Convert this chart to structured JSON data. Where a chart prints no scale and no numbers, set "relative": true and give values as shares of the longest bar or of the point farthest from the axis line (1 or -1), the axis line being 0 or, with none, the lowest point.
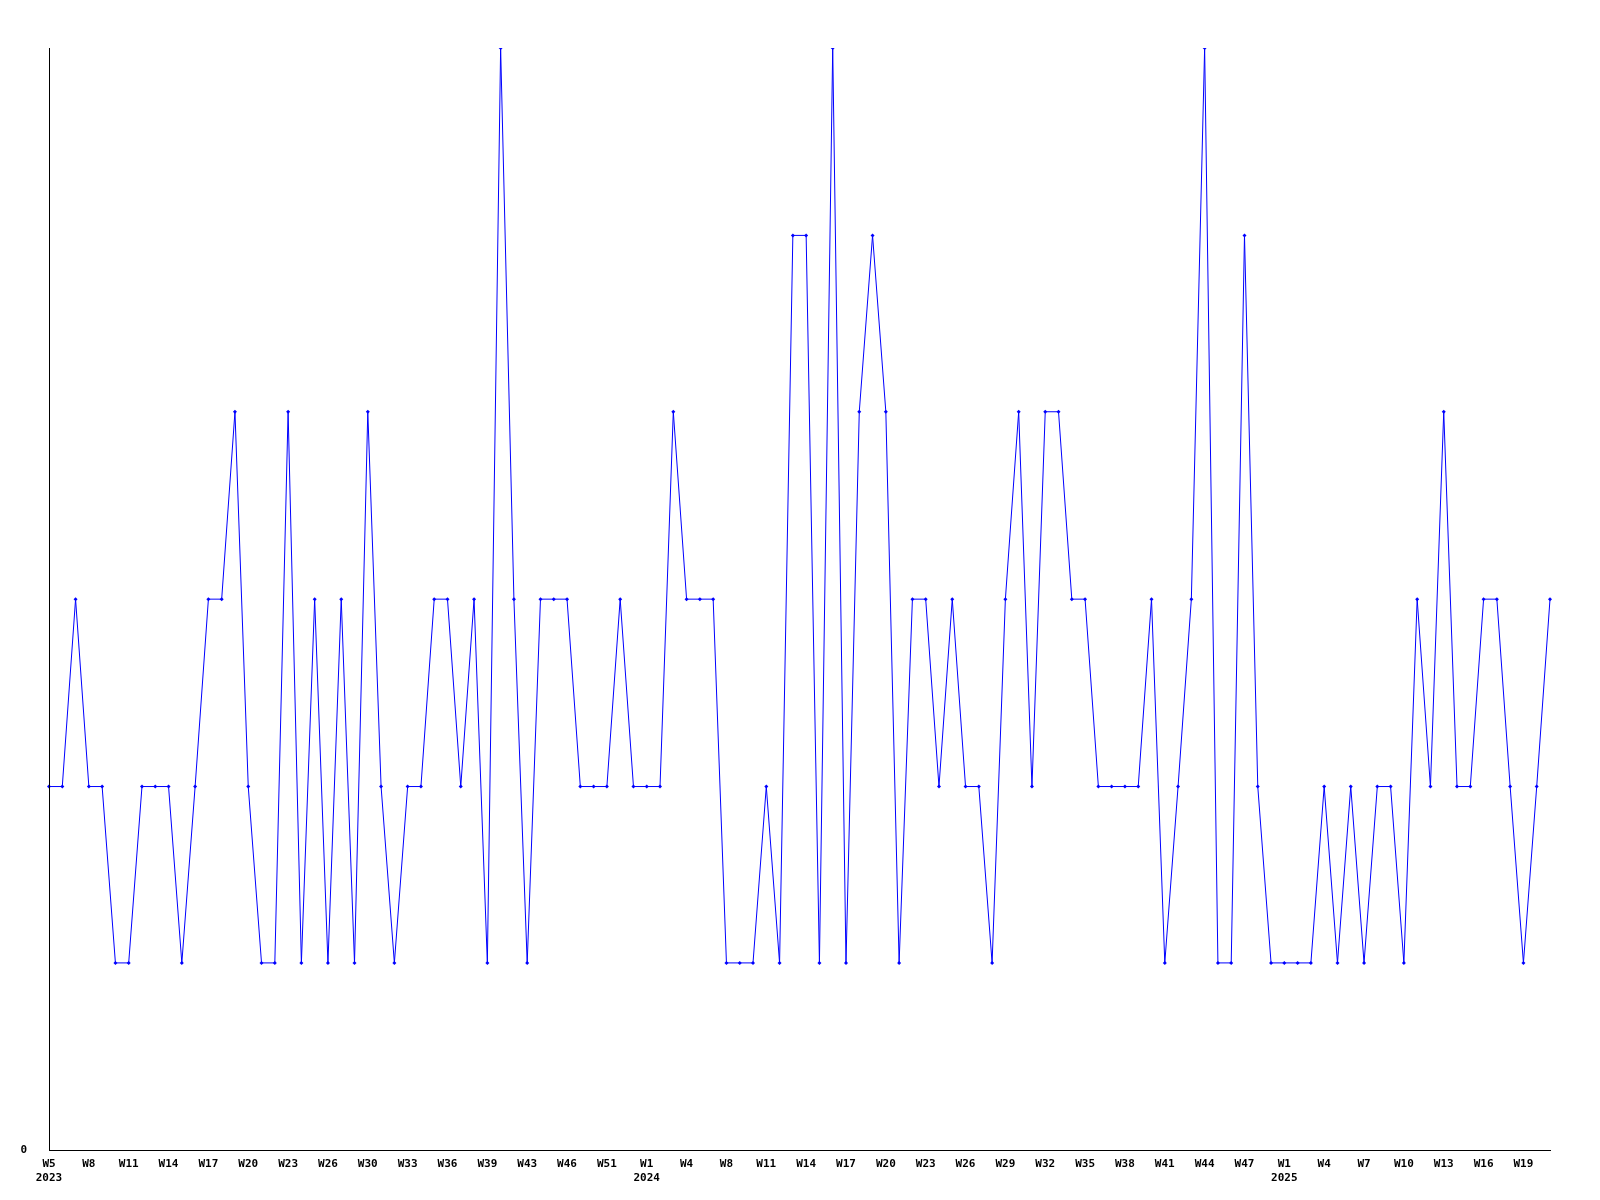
{
  "chart_data": {
    "type": "line",
    "relative": true,
    "color": "#0000ff",
    "marker": "diamond",
    "grid": false,
    "legend": false,
    "annotations": [
      "0"
    ],
    "categories": [
      "W5\n2023",
      null,
      null,
      "W8",
      null,
      null,
      "W11",
      null,
      null,
      "W14",
      null,
      null,
      "W17",
      null,
      null,
      "W20",
      null,
      null,
      "W23",
      null,
      null,
      "W26",
      null,
      null,
      "W30",
      null,
      null,
      "W33",
      null,
      null,
      "W36",
      null,
      null,
      "W39",
      null,
      null,
      "W43",
      null,
      null,
      "W46",
      null,
      null,
      "W51",
      null,
      null,
      "W1\n2024",
      null,
      null,
      "W4",
      null,
      null,
      "W8",
      null,
      null,
      "W11",
      null,
      null,
      "W14",
      null,
      null,
      "W17",
      null,
      null,
      "W20",
      null,
      null,
      "W23",
      null,
      null,
      "W26",
      null,
      null,
      "W29",
      null,
      null,
      "W32",
      null,
      null,
      "W35",
      null,
      null,
      "W38",
      null,
      null,
      "W41",
      null,
      null,
      "W44",
      null,
      null,
      "W47",
      null,
      null,
      "W1\n2025",
      null,
      null,
      "W4",
      null,
      null,
      "W7",
      null,
      null,
      "W10",
      null,
      null,
      "W13",
      null,
      null,
      "W16",
      null,
      null,
      "W19",
      null,
      null
    ],
    "values": [
      0.33,
      0.33,
      0.5,
      0.33,
      0.33,
      0.17,
      0.17,
      0.33,
      0.33,
      0.33,
      0.17,
      0.33,
      0.5,
      0.5,
      0.67,
      0.33,
      0.17,
      0.17,
      0.67,
      0.17,
      0.5,
      0.17,
      0.5,
      0.17,
      0.67,
      0.33,
      0.17,
      0.33,
      0.33,
      0.5,
      0.5,
      0.33,
      0.5,
      0.17,
      1,
      0.5,
      0.17,
      0.5,
      0.5,
      0.5,
      0.33,
      0.33,
      0.33,
      0.5,
      0.33,
      0.33,
      0.33,
      0.67,
      0.5,
      0.5,
      0.5,
      0.17,
      0.17,
      0.17,
      0.33,
      0.17,
      0.83,
      0.83,
      0.17,
      1,
      0.17,
      0.67,
      0.83,
      0.67,
      0.17,
      0.5,
      0.5,
      0.33,
      0.5,
      0.33,
      0.33,
      0.17,
      0.5,
      0.67,
      0.33,
      0.67,
      0.67,
      0.5,
      0.5,
      0.33,
      0.33,
      0.33,
      0.33,
      0.5,
      0.17,
      0.33,
      0.5,
      1,
      0.17,
      0.17,
      0.83,
      0.33,
      0.17,
      0.17,
      0.17,
      0.17,
      0.33,
      0.17,
      0.33,
      0.17,
      0.33,
      0.33,
      0.17,
      0.5,
      0.33,
      0.67,
      0.33,
      0.33,
      0.5,
      0.5,
      0.33,
      0.17,
      0.33,
      0.5
    ]
  }
}
